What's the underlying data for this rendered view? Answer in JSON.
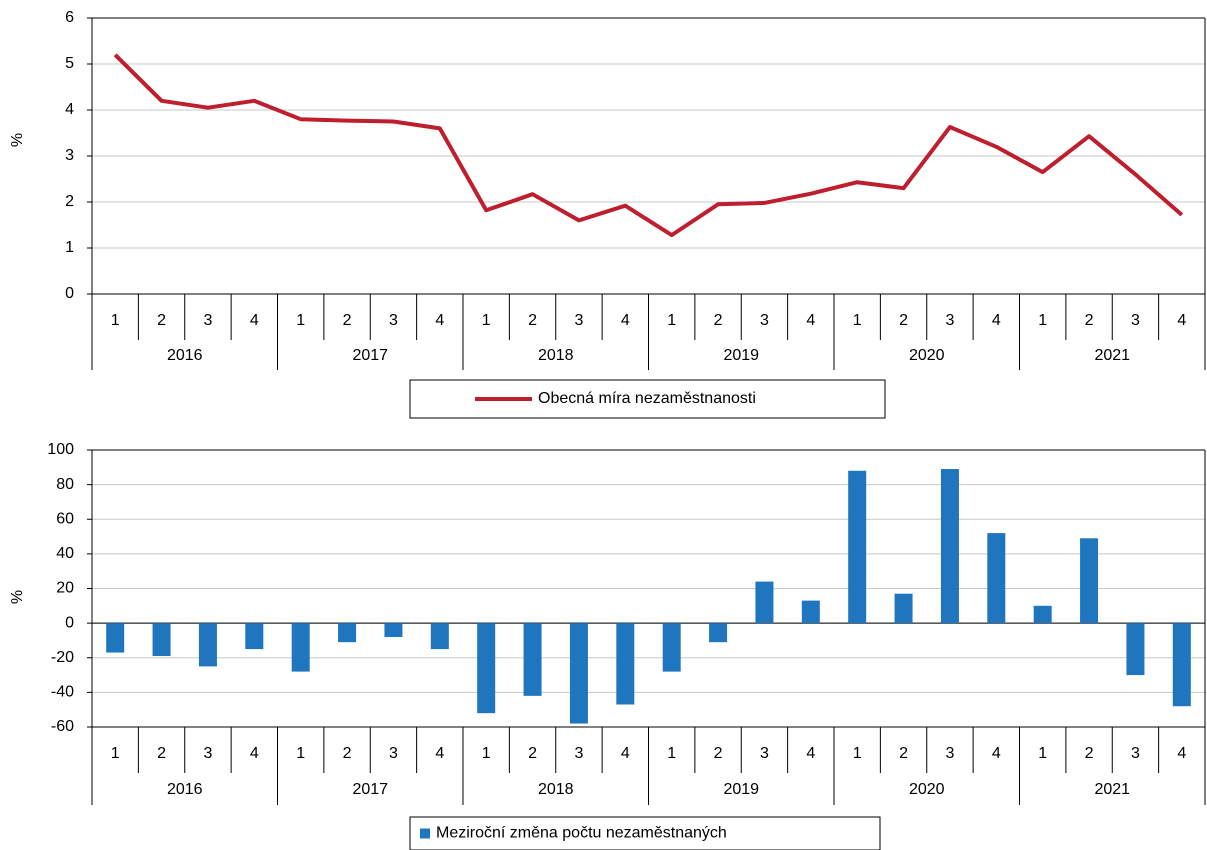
{
  "chart_data": [
    {
      "type": "line",
      "y_label": "%",
      "categories": [
        "1",
        "2",
        "3",
        "4",
        "1",
        "2",
        "3",
        "4",
        "1",
        "2",
        "3",
        "4",
        "1",
        "2",
        "3",
        "4",
        "1",
        "2",
        "3",
        "4",
        "1",
        "2",
        "3",
        "4"
      ],
      "year_groups": [
        "2016",
        "2017",
        "2018",
        "2019",
        "2020",
        "2021"
      ],
      "series": [
        {
          "name": "Obecná míra nezaměstnanosti",
          "color": "#be1e2d",
          "values": [
            5.2,
            4.2,
            4.05,
            4.2,
            3.8,
            3.77,
            3.75,
            3.6,
            1.82,
            2.17,
            1.6,
            1.92,
            1.28,
            1.95,
            1.98,
            2.18,
            2.43,
            2.3,
            3.63,
            3.2,
            2.65,
            3.43,
            2.6,
            1.72
          ]
        }
      ],
      "ylim": [
        0,
        6
      ],
      "yticks": [
        0,
        1,
        2,
        3,
        4,
        5,
        6
      ],
      "grid": true
    },
    {
      "type": "bar",
      "y_label": "%",
      "categories": [
        "1",
        "2",
        "3",
        "4",
        "1",
        "2",
        "3",
        "4",
        "1",
        "2",
        "3",
        "4",
        "1",
        "2",
        "3",
        "4",
        "1",
        "2",
        "3",
        "4",
        "1",
        "2",
        "3",
        "4"
      ],
      "year_groups": [
        "2016",
        "2017",
        "2018",
        "2019",
        "2020",
        "2021"
      ],
      "series": [
        {
          "name": "Meziroční změna počtu nezaměstnaných",
          "color": "#1f75be",
          "values": [
            -17,
            -19,
            -25,
            -15,
            -28,
            -11,
            -8,
            -15,
            -52,
            -42,
            -58,
            -47,
            -28,
            -11,
            24,
            13,
            88,
            17,
            89,
            52,
            10,
            49,
            -30,
            -48
          ]
        }
      ],
      "ylim": [
        -60,
        100
      ],
      "yticks": [
        -60,
        -40,
        -20,
        0,
        20,
        40,
        60,
        80,
        100
      ],
      "grid": true
    }
  ]
}
